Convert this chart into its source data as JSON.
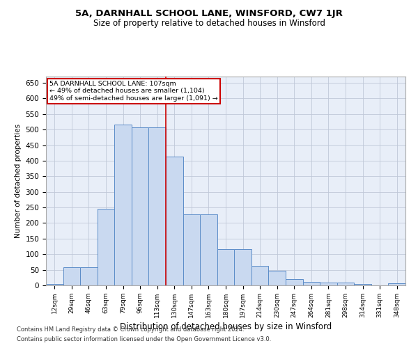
{
  "title": "5A, DARNHALL SCHOOL LANE, WINSFORD, CW7 1JR",
  "subtitle": "Size of property relative to detached houses in Winsford",
  "xlabel": "Distribution of detached houses by size in Winsford",
  "ylabel": "Number of detached properties",
  "footnote1": "Contains HM Land Registry data © Crown copyright and database right 2024.",
  "footnote2": "Contains public sector information licensed under the Open Government Licence v3.0.",
  "annotation_line1": "5A DARNHALL SCHOOL LANE: 107sqm",
  "annotation_line2": "← 49% of detached houses are smaller (1,104)",
  "annotation_line3": "49% of semi-detached houses are larger (1,091) →",
  "bar_color": "#c9d9f0",
  "bar_edge_color": "#5b8cc8",
  "grid_color": "#c0c8d8",
  "vline_color": "#cc0000",
  "bg_color": "#e8eef8",
  "categories": [
    "12sqm",
    "29sqm",
    "46sqm",
    "63sqm",
    "79sqm",
    "96sqm",
    "113sqm",
    "130sqm",
    "147sqm",
    "163sqm",
    "180sqm",
    "197sqm",
    "214sqm",
    "230sqm",
    "247sqm",
    "264sqm",
    "281sqm",
    "298sqm",
    "314sqm",
    "331sqm",
    "348sqm"
  ],
  "values": [
    5,
    57,
    57,
    246,
    516,
    507,
    507,
    414,
    228,
    228,
    116,
    116,
    62,
    47,
    21,
    11,
    8,
    8,
    5,
    1,
    6
  ],
  "vline_position": 6.5,
  "ylim": [
    0,
    670
  ],
  "yticks": [
    0,
    50,
    100,
    150,
    200,
    250,
    300,
    350,
    400,
    450,
    500,
    550,
    600,
    650
  ]
}
